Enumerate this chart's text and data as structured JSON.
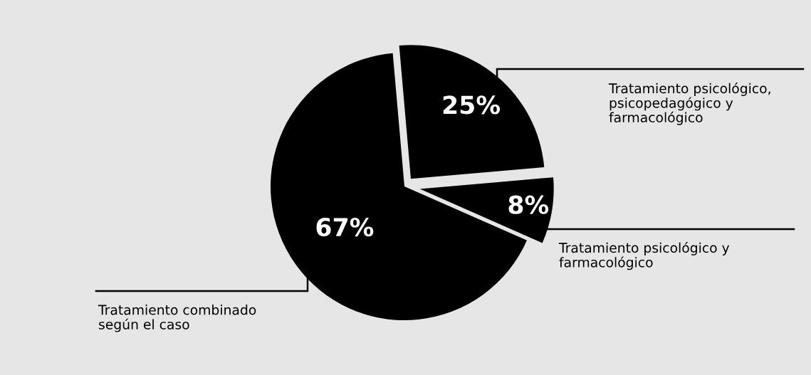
{
  "chart_data": {
    "type": "pie",
    "categories": [
      "Tratamiento psicológico,\npsicopedagógico y\nfarmacológico",
      "Tratamiento psicológico y\nfarmacológico",
      "Tratamiento combinado\nsegún el caso"
    ],
    "values": [
      25,
      8,
      67
    ],
    "colors": [
      "#000000",
      "#000000",
      "#000000"
    ],
    "value_labels": [
      "25%",
      "8%",
      "67%"
    ],
    "legend": false
  }
}
